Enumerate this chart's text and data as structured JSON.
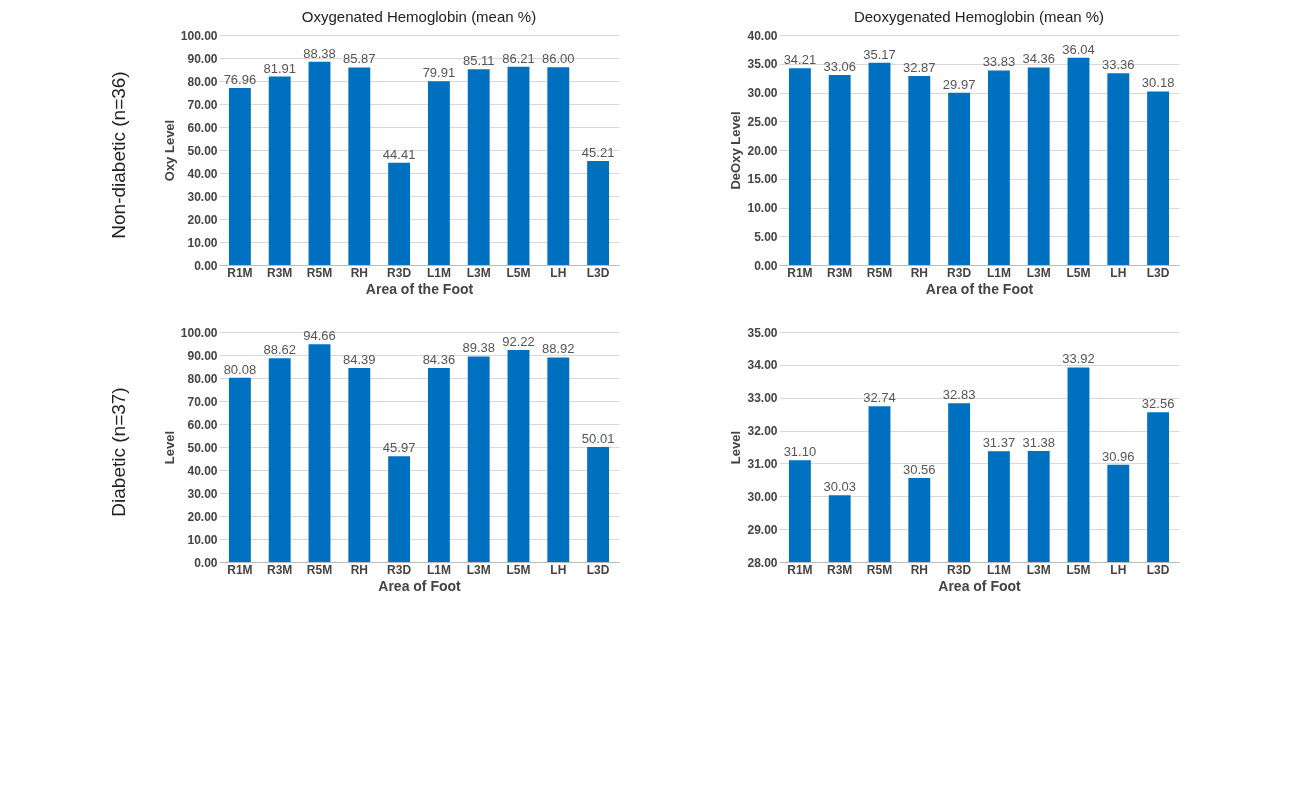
{
  "chart_data": [
    {
      "type": "bar",
      "title": "Oxygenated Hemoglobin (mean %)",
      "xlabel": "Area of the Foot",
      "ylabel": "Oxy Level",
      "annotations": [
        "Non-diabetic (n=36)"
      ],
      "categories": [
        "R1M",
        "R3M",
        "R5M",
        "RH",
        "R3D",
        "L1M",
        "L3M",
        "L5M",
        "LH",
        "L3D"
      ],
      "values": [
        76.96,
        81.91,
        88.38,
        85.87,
        44.41,
        79.91,
        85.11,
        86.21,
        86.0,
        45.21
      ],
      "value_labels": [
        "76.96",
        "81.91",
        "88.38",
        "85.87",
        "44.41",
        "79.91",
        "85.11",
        "86.21",
        "86.00",
        "45.21"
      ],
      "color": "#0070c0",
      "ylim": [
        0,
        100
      ],
      "yticks": [
        {
          "value": 0,
          "label": "0.00"
        },
        {
          "value": 10,
          "label": "10.00"
        },
        {
          "value": 20,
          "label": "20.00"
        },
        {
          "value": 30,
          "label": "30.00"
        },
        {
          "value": 40,
          "label": "40.00"
        },
        {
          "value": 50,
          "label": "50.00"
        },
        {
          "value": 60,
          "label": "60.00"
        },
        {
          "value": 70,
          "label": "70.00"
        },
        {
          "value": 80,
          "label": "80.00"
        },
        {
          "value": 90,
          "label": "90.00"
        },
        {
          "value": 100,
          "label": "100.00"
        }
      ],
      "grid": "y"
    },
    {
      "type": "bar",
      "title": "Deoxygenated Hemoglobin (mean %)",
      "xlabel": "Area of the Foot",
      "ylabel": "DeOxy Level",
      "categories": [
        "R1M",
        "R3M",
        "R5M",
        "RH",
        "R3D",
        "L1M",
        "L3M",
        "L5M",
        "LH",
        "L3D"
      ],
      "values": [
        34.21,
        33.06,
        35.17,
        32.87,
        29.97,
        33.83,
        34.36,
        36.04,
        33.36,
        30.18
      ],
      "value_labels": [
        "34.21",
        "33.06",
        "35.17",
        "32.87",
        "29.97",
        "33.83",
        "34.36",
        "36.04",
        "33.36",
        "30.18"
      ],
      "color": "#0070c0",
      "ylim": [
        0,
        40
      ],
      "yticks": [
        {
          "value": 0,
          "label": "0.00"
        },
        {
          "value": 5,
          "label": "5.00"
        },
        {
          "value": 10,
          "label": "10.00"
        },
        {
          "value": 15,
          "label": "15.00"
        },
        {
          "value": 20,
          "label": "20.00"
        },
        {
          "value": 25,
          "label": "25.00"
        },
        {
          "value": 30,
          "label": "30.00"
        },
        {
          "value": 35,
          "label": "35.00"
        },
        {
          "value": 40,
          "label": "40.00"
        }
      ],
      "grid": "y"
    },
    {
      "type": "bar",
      "xlabel": "Area of Foot",
      "ylabel": "Level",
      "annotations": [
        "Diabetic (n=37)"
      ],
      "categories": [
        "R1M",
        "R3M",
        "R5M",
        "RH",
        "R3D",
        "L1M",
        "L3M",
        "L5M",
        "LH",
        "L3D"
      ],
      "values": [
        80.08,
        88.62,
        94.66,
        84.39,
        45.97,
        84.36,
        89.38,
        92.22,
        88.92,
        50.01
      ],
      "value_labels": [
        "80.08",
        "88.62",
        "94.66",
        "84.39",
        "45.97",
        "84.36",
        "89.38",
        "92.22",
        "88.92",
        "50.01"
      ],
      "color": "#0070c0",
      "ylim": [
        0,
        100
      ],
      "yticks": [
        {
          "value": 0,
          "label": "0.00"
        },
        {
          "value": 10,
          "label": "10.00"
        },
        {
          "value": 20,
          "label": "20.00"
        },
        {
          "value": 30,
          "label": "30.00"
        },
        {
          "value": 40,
          "label": "40.00"
        },
        {
          "value": 50,
          "label": "50.00"
        },
        {
          "value": 60,
          "label": "60.00"
        },
        {
          "value": 70,
          "label": "70.00"
        },
        {
          "value": 80,
          "label": "80.00"
        },
        {
          "value": 90,
          "label": "90.00"
        },
        {
          "value": 100,
          "label": "100.00"
        }
      ],
      "grid": "y"
    },
    {
      "type": "bar",
      "xlabel": "Area of Foot",
      "ylabel": "Level",
      "categories": [
        "R1M",
        "R3M",
        "R5M",
        "RH",
        "R3D",
        "L1M",
        "L3M",
        "L5M",
        "LH",
        "L3D"
      ],
      "values": [
        31.1,
        30.03,
        32.74,
        30.56,
        32.83,
        31.37,
        31.38,
        33.92,
        30.96,
        32.56
      ],
      "value_labels": [
        "31.10",
        "30.03",
        "32.74",
        "30.56",
        "32.83",
        "31.37",
        "31.38",
        "33.92",
        "30.96",
        "32.56"
      ],
      "color": "#0070c0",
      "ylim": [
        28,
        35
      ],
      "yticks": [
        {
          "value": 28,
          "label": "28.00"
        },
        {
          "value": 29,
          "label": "29.00"
        },
        {
          "value": 30,
          "label": "30.00"
        },
        {
          "value": 31,
          "label": "31.00"
        },
        {
          "value": 32,
          "label": "32.00"
        },
        {
          "value": 33,
          "label": "33.00"
        },
        {
          "value": 34,
          "label": "34.00"
        },
        {
          "value": 35,
          "label": "35.00"
        }
      ],
      "grid": "y"
    }
  ]
}
